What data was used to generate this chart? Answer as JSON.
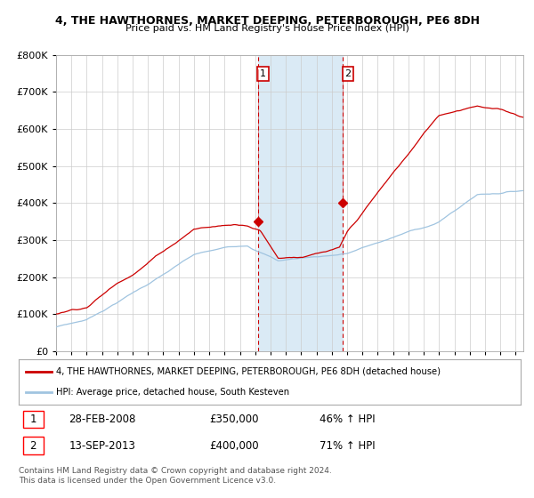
{
  "title": "4, THE HAWTHORNES, MARKET DEEPING, PETERBOROUGH, PE6 8DH",
  "subtitle": "Price paid vs. HM Land Registry's House Price Index (HPI)",
  "ylim": [
    0,
    800000
  ],
  "xlim_start": 1995.0,
  "xlim_end": 2025.5,
  "hpi_color": "#a0c4e0",
  "price_color": "#cc0000",
  "shaded_region_color": "#daeaf5",
  "transaction1_date": 2008.163,
  "transaction1_price": 350000,
  "transaction2_date": 2013.706,
  "transaction2_price": 400000,
  "legend_line1": "4, THE HAWTHORNES, MARKET DEEPING, PETERBOROUGH, PE6 8DH (detached house)",
  "legend_line2": "HPI: Average price, detached house, South Kesteven",
  "table_row1_num": "1",
  "table_row1_date": "28-FEB-2008",
  "table_row1_price": "£350,000",
  "table_row1_hpi": "46% ↑ HPI",
  "table_row2_num": "2",
  "table_row2_date": "13-SEP-2013",
  "table_row2_price": "£400,000",
  "table_row2_hpi": "71% ↑ HPI",
  "footnote": "Contains HM Land Registry data © Crown copyright and database right 2024.\nThis data is licensed under the Open Government Licence v3.0."
}
